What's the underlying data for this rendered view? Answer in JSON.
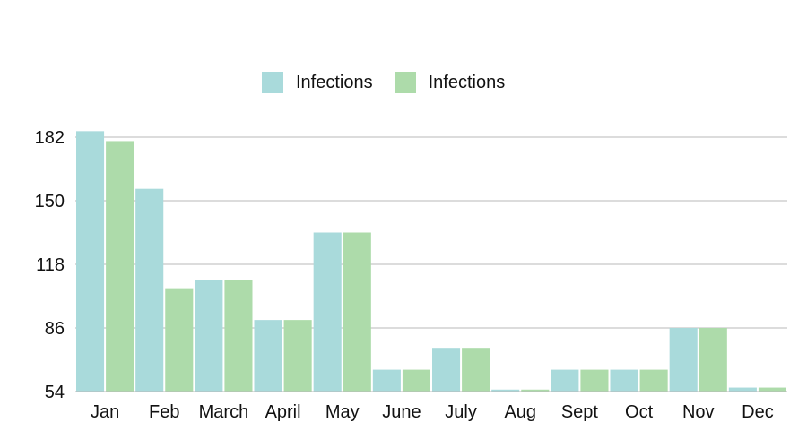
{
  "chart_data": {
    "type": "bar",
    "categories": [
      "Jan",
      "Feb",
      "March",
      "April",
      "May",
      "June",
      "July",
      "Aug",
      "Sept",
      "Oct",
      "Nov",
      "Dec"
    ],
    "series": [
      {
        "name": "Infections",
        "color": "#a9dadb",
        "values": [
          185,
          156,
          110,
          90,
          134,
          65,
          76,
          55,
          65,
          65,
          86,
          56
        ]
      },
      {
        "name": "Infections",
        "color": "#addbaa",
        "values": [
          180,
          106,
          110,
          90,
          134,
          65,
          76,
          55,
          65,
          65,
          86,
          56
        ]
      }
    ],
    "y_ticks": [
      "182",
      "150",
      "118",
      "86",
      "54"
    ],
    "ylim": [
      54,
      182
    ],
    "grid": true,
    "legend_position": "top-center",
    "xlabel": "",
    "ylabel": ""
  }
}
